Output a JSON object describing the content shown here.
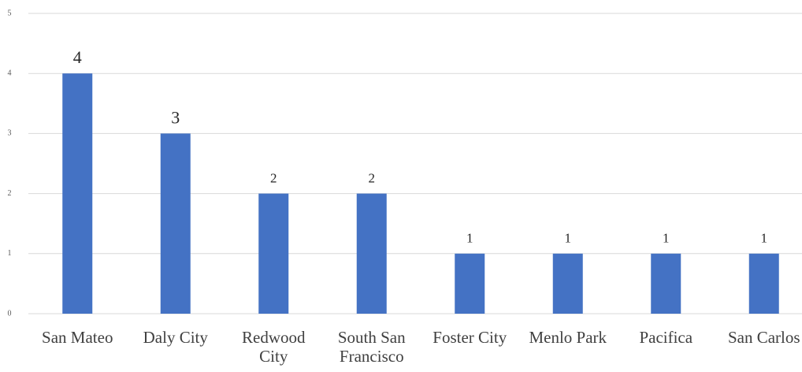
{
  "chart_data": {
    "type": "bar",
    "categories": [
      "San Mateo",
      "Daly City",
      "Redwood City",
      "South San Francisco",
      "Foster City",
      "Menlo Park",
      "Pacifica",
      "San Carlos"
    ],
    "values": [
      4,
      3,
      2,
      2,
      1,
      1,
      1,
      1
    ],
    "color": "#4472c4",
    "ylim": [
      0,
      5
    ],
    "yticks": [
      0,
      1,
      2,
      3,
      4,
      5
    ],
    "grid": true
  }
}
